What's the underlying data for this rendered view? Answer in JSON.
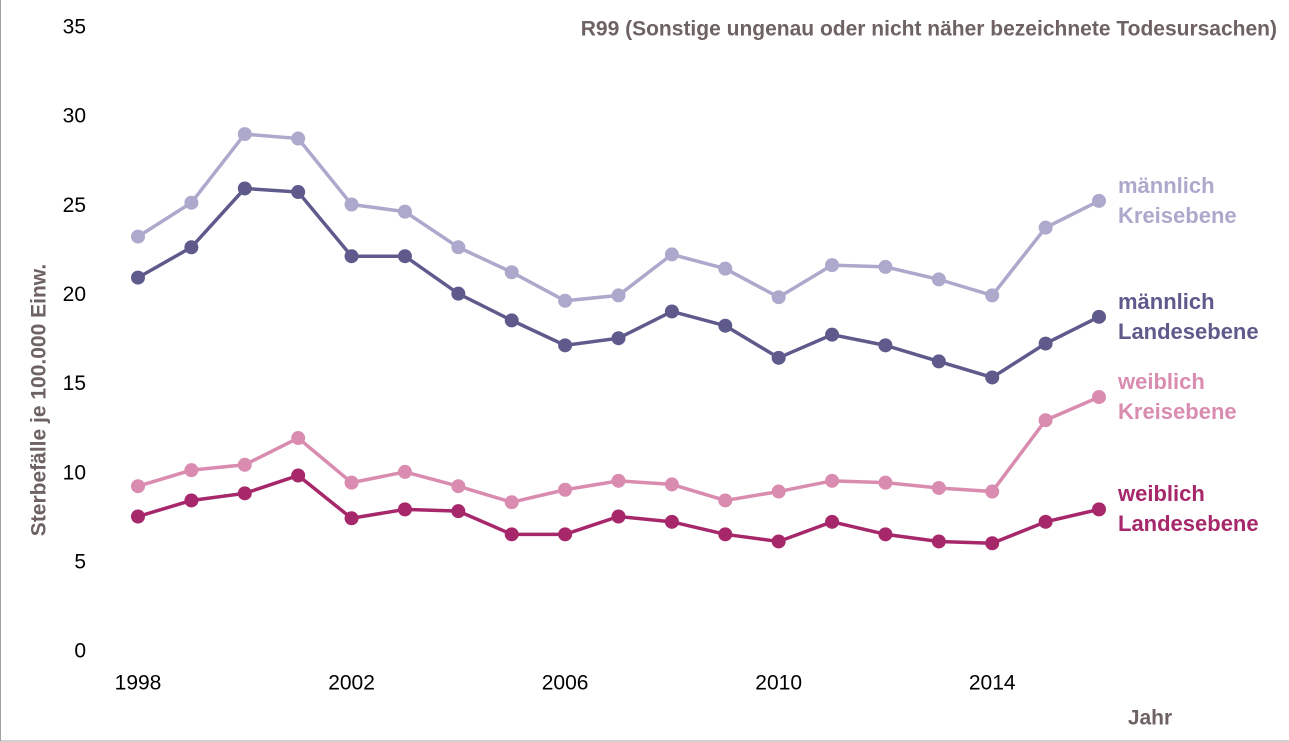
{
  "chart_data": {
    "type": "line",
    "title": "R99 (Sonstige ungenau oder nicht näher bezeichnete Todesursachen)",
    "y_label": "Sterbefälle je 100.000 Einw.",
    "x_label": "Jahr",
    "x": [
      1998,
      1999,
      2000,
      2001,
      2002,
      2003,
      2004,
      2005,
      2006,
      2007,
      2008,
      2009,
      2010,
      2011,
      2012,
      2013,
      2014,
      2015,
      2016
    ],
    "xlim": [
      1998,
      2016
    ],
    "xticks": [
      1998,
      2002,
      2006,
      2010,
      2014
    ],
    "ylim": [
      0,
      35
    ],
    "yticks": [
      0,
      5,
      10,
      15,
      20,
      25,
      30,
      35
    ],
    "grid": false,
    "series": [
      {
        "name": "männlich\nKreisebene",
        "color": "#aca9cc",
        "values": [
          23.3,
          25.2,
          29.05,
          28.8,
          25.1,
          24.7,
          22.7,
          21.3,
          19.7,
          20.0,
          22.3,
          21.5,
          19.9,
          21.7,
          21.6,
          20.9,
          20.0,
          23.8,
          25.3
        ]
      },
      {
        "name": "männlich\nLandesebene",
        "color": "#5f5a8c",
        "values": [
          21.0,
          22.7,
          26.0,
          25.8,
          22.2,
          22.2,
          20.1,
          18.6,
          17.2,
          17.6,
          19.1,
          18.3,
          16.5,
          17.8,
          17.2,
          16.3,
          15.4,
          17.3,
          18.8
        ]
      },
      {
        "name": "weiblich\nKreisebene",
        "color": "#d98cb0",
        "values": [
          9.3,
          10.2,
          10.5,
          12.0,
          9.5,
          10.1,
          9.3,
          8.4,
          9.1,
          9.6,
          9.4,
          8.5,
          9.0,
          9.6,
          9.5,
          9.2,
          9.0,
          13.0,
          14.3
        ]
      },
      {
        "name": "weiblich\nLandesebene",
        "color": "#a6286b",
        "values": [
          7.6,
          8.5,
          8.9,
          9.9,
          7.5,
          8.0,
          7.9,
          6.6,
          6.6,
          7.6,
          7.3,
          6.6,
          6.2,
          7.3,
          6.6,
          6.2,
          6.1,
          7.3,
          8.0
        ]
      }
    ]
  }
}
